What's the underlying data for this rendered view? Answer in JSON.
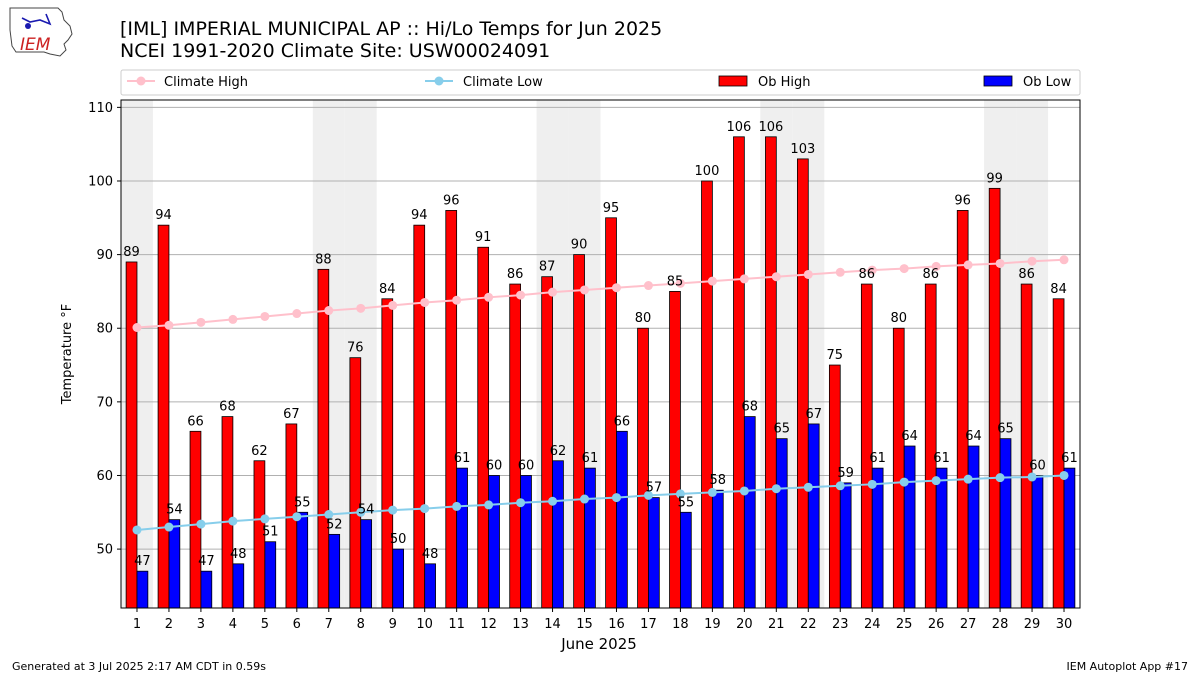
{
  "header": {
    "logo_text": "IEM",
    "title_line1": "[IML] IMPERIAL MUNICIPAL AP :: Hi/Lo Temps for Jun 2025",
    "title_line2": "NCEI 1991-2020 Climate Site: USW00024091"
  },
  "footer": {
    "generated": "Generated at 3 Jul 2025 2:17 AM CDT in 0.59s",
    "app": "IEM Autoplot App #17"
  },
  "colors": {
    "ob_high": "#ff0000",
    "ob_low": "#0000ff",
    "climate_high": "#ffc0cb",
    "climate_low": "#87ceeb",
    "weekend_shade": "#efefef"
  },
  "chart_data": {
    "type": "bar",
    "xlabel": "June 2025",
    "ylabel": "Temperature °F",
    "ylim": [
      42,
      111
    ],
    "yticks": [
      50,
      60,
      70,
      80,
      90,
      100,
      110
    ],
    "grid": true,
    "legend_placement": "top",
    "categories": [
      "1",
      "2",
      "3",
      "4",
      "5",
      "6",
      "7",
      "8",
      "9",
      "10",
      "11",
      "12",
      "13",
      "14",
      "15",
      "16",
      "17",
      "18",
      "19",
      "20",
      "21",
      "22",
      "23",
      "24",
      "25",
      "26",
      "27",
      "28",
      "29",
      "30"
    ],
    "weekend_days": [
      1,
      7,
      8,
      14,
      15,
      21,
      22,
      28,
      29
    ],
    "series": [
      {
        "name": "Ob High",
        "kind": "bar",
        "values": [
          89,
          94,
          66,
          68,
          62,
          67,
          88,
          76,
          84,
          94,
          96,
          91,
          86,
          87,
          90,
          95,
          80,
          85,
          100,
          106,
          106,
          103,
          75,
          86,
          80,
          86,
          96,
          99,
          86,
          84
        ]
      },
      {
        "name": "Ob Low",
        "kind": "bar",
        "values": [
          47,
          54,
          47,
          48,
          51,
          55,
          52,
          54,
          50,
          48,
          61,
          60,
          60,
          62,
          61,
          66,
          57,
          55,
          58,
          68,
          65,
          67,
          59,
          61,
          64,
          61,
          64,
          65,
          60,
          61
        ]
      },
      {
        "name": "Climate High",
        "kind": "line",
        "values": [
          80.1,
          80.4,
          80.8,
          81.2,
          81.6,
          82.0,
          82.4,
          82.7,
          83.1,
          83.5,
          83.8,
          84.2,
          84.5,
          84.9,
          85.2,
          85.5,
          85.8,
          86.1,
          86.4,
          86.7,
          87.0,
          87.3,
          87.6,
          87.9,
          88.1,
          88.4,
          88.6,
          88.8,
          89.1,
          89.3
        ]
      },
      {
        "name": "Climate Low",
        "kind": "line",
        "values": [
          52.6,
          53.0,
          53.4,
          53.8,
          54.1,
          54.4,
          54.7,
          55.0,
          55.3,
          55.5,
          55.8,
          56.0,
          56.3,
          56.5,
          56.8,
          57.0,
          57.3,
          57.5,
          57.7,
          57.9,
          58.2,
          58.4,
          58.6,
          58.8,
          59.1,
          59.3,
          59.5,
          59.7,
          59.8,
          60.0
        ]
      }
    ]
  }
}
